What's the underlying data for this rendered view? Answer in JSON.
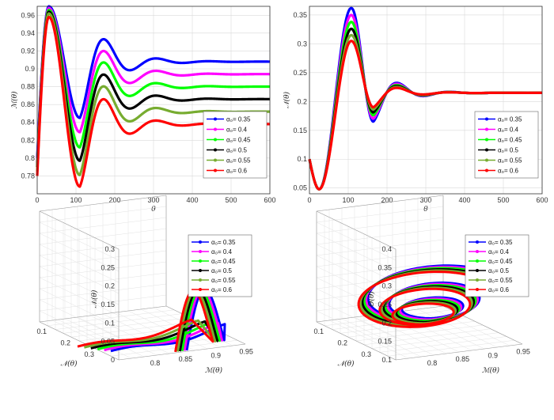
{
  "colors": [
    "#0000ff",
    "#ff00ff",
    "#00ff00",
    "#000000",
    "#77ac30",
    "#ff0000"
  ],
  "legend_labels": [
    "α₀= 0.35",
    "α₀= 0.4",
    "α₀= 0.45",
    "α₀= 0.5",
    "α₀= 0.55",
    "α₀= 0.6"
  ],
  "chart_data": [
    {
      "type": "line",
      "xlabel": "θ",
      "ylabel": "ℳ(θ)",
      "xlim": [
        0,
        600
      ],
      "ylim": [
        0.76,
        0.97
      ],
      "xticks": [
        0,
        100,
        200,
        300,
        400,
        500,
        600
      ],
      "yticks": [
        0.78,
        0.8,
        0.82,
        0.84,
        0.86,
        0.88,
        0.9,
        0.92,
        0.94,
        0.96
      ],
      "ytick_labels": [
        "0.78",
        "0.8",
        "0.82",
        "0.84",
        "0.86",
        "0.88",
        "0.9",
        "0.92",
        "0.94",
        "0.96"
      ],
      "grid": true,
      "legend_position": "right",
      "series": [
        {
          "name": "α₀= 0.35",
          "y0": 0.8,
          "peak": 0.97,
          "trough": 0.845,
          "final": 0.908
        },
        {
          "name": "α₀= 0.4",
          "y0": 0.795,
          "peak": 0.968,
          "trough": 0.829,
          "final": 0.894
        },
        {
          "name": "α₀= 0.45",
          "y0": 0.79,
          "peak": 0.966,
          "trough": 0.812,
          "final": 0.88
        },
        {
          "name": "α₀= 0.5",
          "y0": 0.79,
          "peak": 0.964,
          "trough": 0.797,
          "final": 0.866
        },
        {
          "name": "α₀= 0.55",
          "y0": 0.785,
          "peak": 0.962,
          "trough": 0.781,
          "final": 0.852
        },
        {
          "name": "α₀= 0.6",
          "y0": 0.78,
          "peak": 0.958,
          "trough": 0.768,
          "final": 0.838
        }
      ]
    },
    {
      "type": "line",
      "xlabel": "θ",
      "ylabel": "𝒩(θ)",
      "xlim": [
        0,
        600
      ],
      "ylim": [
        0.04,
        0.365
      ],
      "xticks": [
        0,
        100,
        200,
        300,
        400,
        500,
        600
      ],
      "yticks": [
        0.05,
        0.1,
        0.15,
        0.2,
        0.25,
        0.3,
        0.35
      ],
      "ytick_labels": [
        "0.05",
        "0.1",
        "0.15",
        "0.2",
        "0.25",
        "0.3",
        "0.35"
      ],
      "grid": true,
      "legend_position": "right",
      "series": [
        {
          "name": "α₀= 0.35",
          "y0": 0.1,
          "peak": 0.362,
          "trough": 0.165,
          "final": 0.215
        },
        {
          "name": "α₀= 0.4",
          "y0": 0.1,
          "peak": 0.35,
          "trough": 0.17,
          "final": 0.215
        },
        {
          "name": "α₀= 0.45",
          "y0": 0.1,
          "peak": 0.338,
          "trough": 0.176,
          "final": 0.215
        },
        {
          "name": "α₀= 0.5",
          "y0": 0.1,
          "peak": 0.326,
          "trough": 0.181,
          "final": 0.215
        },
        {
          "name": "α₀= 0.55",
          "y0": 0.1,
          "peak": 0.315,
          "trough": 0.186,
          "final": 0.215
        },
        {
          "name": "α₀= 0.6",
          "y0": 0.1,
          "peak": 0.305,
          "trough": 0.19,
          "final": 0.215
        }
      ]
    },
    {
      "type": "line",
      "projection": "3d",
      "xlabel": "ℳ(θ)",
      "ylabel": "𝒩(θ)",
      "zlabel": "𝒩ᵢ(θ)",
      "xticks": [
        "0.8",
        "0.85",
        "0.9",
        "0.95"
      ],
      "yticks": [
        "0.1",
        "0.2",
        "0.3"
      ],
      "zticks": [
        "0",
        "0.05",
        "0.1",
        "0.15",
        "0.2",
        "0.25",
        "0.3"
      ],
      "grid": true,
      "legend_position": "top-right"
    },
    {
      "type": "line",
      "projection": "3d",
      "xlabel": "ℳ(θ)",
      "ylabel": "𝒩(θ)",
      "zlabel": "Θ(θ)",
      "xticks": [
        "0.8",
        "0.85",
        "0.9",
        "0.95"
      ],
      "yticks": [
        "0.1",
        "0.2",
        "0.3"
      ],
      "zticks": [
        "0.1",
        "0.15",
        "0.2",
        "0.25",
        "0.3",
        "0.35",
        "0.4"
      ],
      "grid": true,
      "legend_position": "top-right"
    }
  ]
}
